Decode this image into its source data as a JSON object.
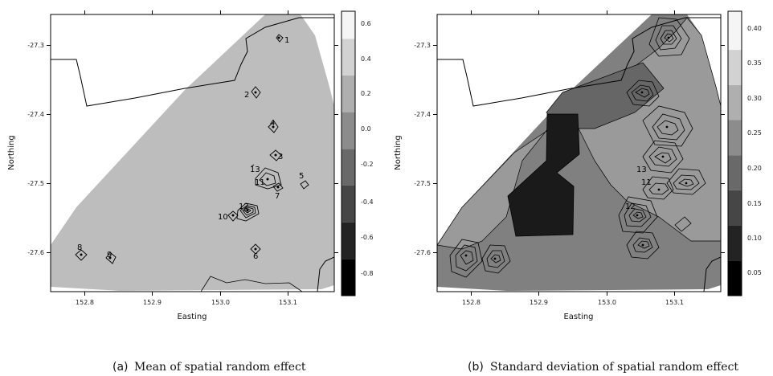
{
  "chart_data": [
    {
      "type": "heatmap",
      "panel_label": "(a)",
      "caption": "Mean of spatial random effect",
      "xlabel": "Easting",
      "ylabel": "Northing",
      "xlim": [
        152.72,
        153.13
      ],
      "ylim": [
        -27.655,
        -27.255
      ],
      "xticks": [
        "152.8",
        "152.9",
        "153.0",
        "153.1"
      ],
      "yticks": [
        "-27.3",
        "-27.4",
        "-27.5",
        "-27.6"
      ],
      "colorbar": {
        "range": [
          -0.9,
          0.65
        ],
        "ticks": [
          "0.6",
          "0.4",
          "0.2",
          "0.0",
          "-0.2",
          "-0.4",
          "-0.6",
          "-0.8"
        ],
        "levels": [
          -0.9,
          -0.7,
          -0.5,
          -0.3,
          -0.1,
          0.1,
          0.3,
          0.5,
          0.65
        ]
      },
      "background_level": -0.1,
      "sites": [
        {
          "label": "1",
          "x": 153.047,
          "y": -27.294
        },
        {
          "label": "2",
          "x": 153.017,
          "y": -27.369
        },
        {
          "label": "4",
          "x": 153.07,
          "y": -27.422
        },
        {
          "label": "3",
          "x": 153.044,
          "y": -27.461
        },
        {
          "label": "5",
          "x": 153.082,
          "y": -27.503
        },
        {
          "label": "13",
          "x": 153.024,
          "y": -27.485
        },
        {
          "label": "11",
          "x": 153.037,
          "y": -27.501
        },
        {
          "label": "7",
          "x": 153.047,
          "y": -27.507
        },
        {
          "label": "12",
          "x": 153.008,
          "y": -27.545
        },
        {
          "label": "10",
          "x": 152.99,
          "y": -27.549
        },
        {
          "label": "8",
          "x": 152.763,
          "y": -27.605
        },
        {
          "label": "9",
          "x": 152.805,
          "y": -27.612
        },
        {
          "label": "6",
          "x": 153.047,
          "y": -27.596
        }
      ]
    },
    {
      "type": "heatmap",
      "panel_label": "(b)",
      "caption": "Standard deviation of spatial random effect",
      "xlabel": "Easting",
      "ylabel": "Northing",
      "xlim": [
        152.72,
        153.13
      ],
      "ylim": [
        -27.655,
        -27.255
      ],
      "xticks": [
        "152.8",
        "152.9",
        "153.0",
        "153.1"
      ],
      "yticks": [
        "-27.3",
        "-27.4",
        "-27.5",
        "-27.6"
      ],
      "colorbar": {
        "range": [
          0.025,
          0.43
        ],
        "ticks": [
          "0.40",
          "0.35",
          "0.30",
          "0.25",
          "0.20",
          "0.15",
          "0.10",
          "0.05"
        ],
        "levels": [
          0.025,
          0.075,
          0.125,
          0.175,
          0.225,
          0.275,
          0.325,
          0.375,
          0.43
        ]
      },
      "sites": [
        {
          "label": "13",
          "x": 153.024,
          "y": -27.485
        },
        {
          "label": "11",
          "x": 153.037,
          "y": -27.501
        },
        {
          "label": "12",
          "x": 153.008,
          "y": -27.545
        }
      ]
    }
  ]
}
